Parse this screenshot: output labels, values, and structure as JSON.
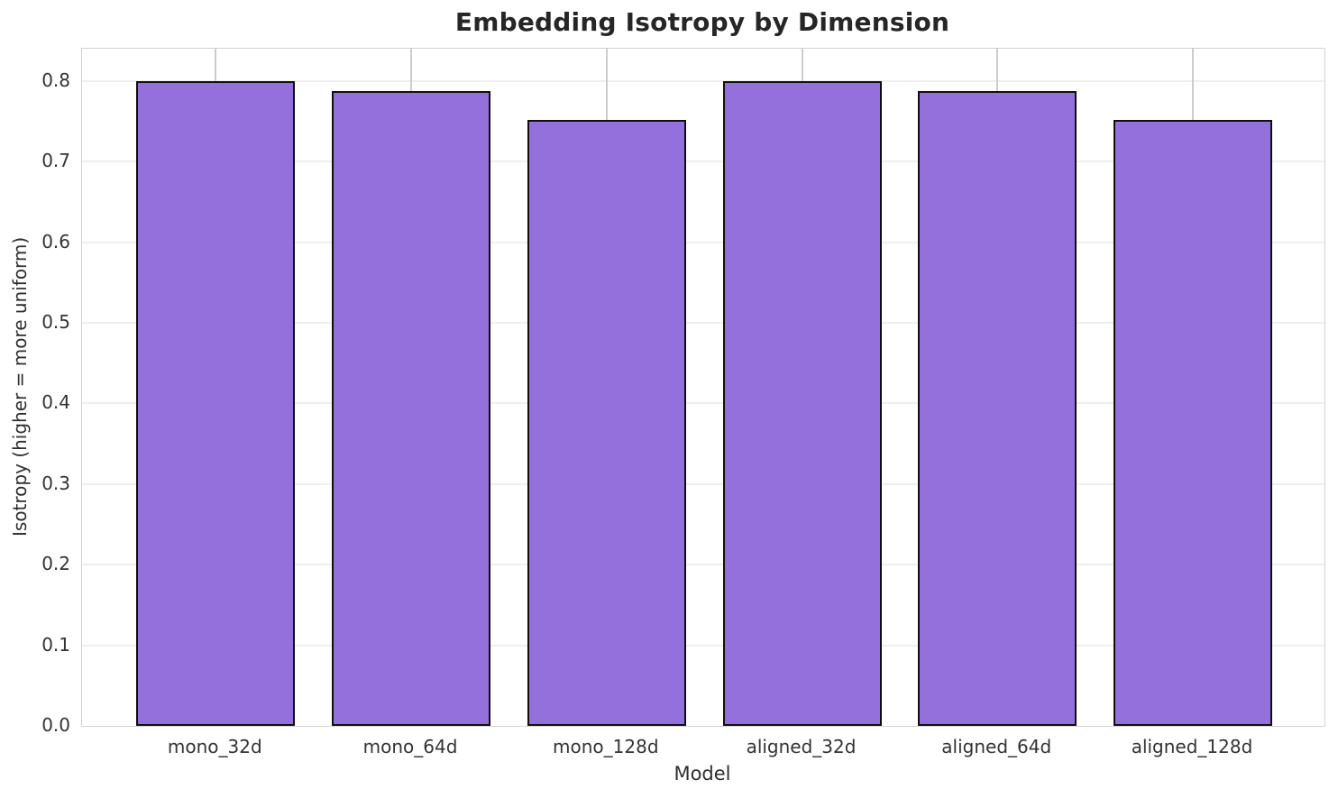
{
  "chart_data": {
    "type": "bar",
    "title": "Embedding Isotropy by Dimension",
    "xlabel": "Model",
    "ylabel": "Isotropy (higher = more uniform)",
    "categories": [
      "mono_32d",
      "mono_64d",
      "mono_128d",
      "aligned_32d",
      "aligned_64d",
      "aligned_128d"
    ],
    "values": [
      0.8,
      0.788,
      0.752,
      0.8,
      0.788,
      0.752
    ],
    "ylim": [
      0.0,
      0.84
    ],
    "yticks": [
      0.0,
      0.1,
      0.2,
      0.3,
      0.4,
      0.5,
      0.6,
      0.7,
      0.8
    ],
    "grid": "on",
    "legend": "none",
    "bar_color": "#9370DB",
    "bar_edge_color": "#0f0f0f",
    "grid_color_horizontal": "#efefef",
    "grid_color_vertical": "#cccccc",
    "spine_color": "#d2d2d2",
    "title_color": "#262626",
    "tick_label_color": "#333333"
  }
}
